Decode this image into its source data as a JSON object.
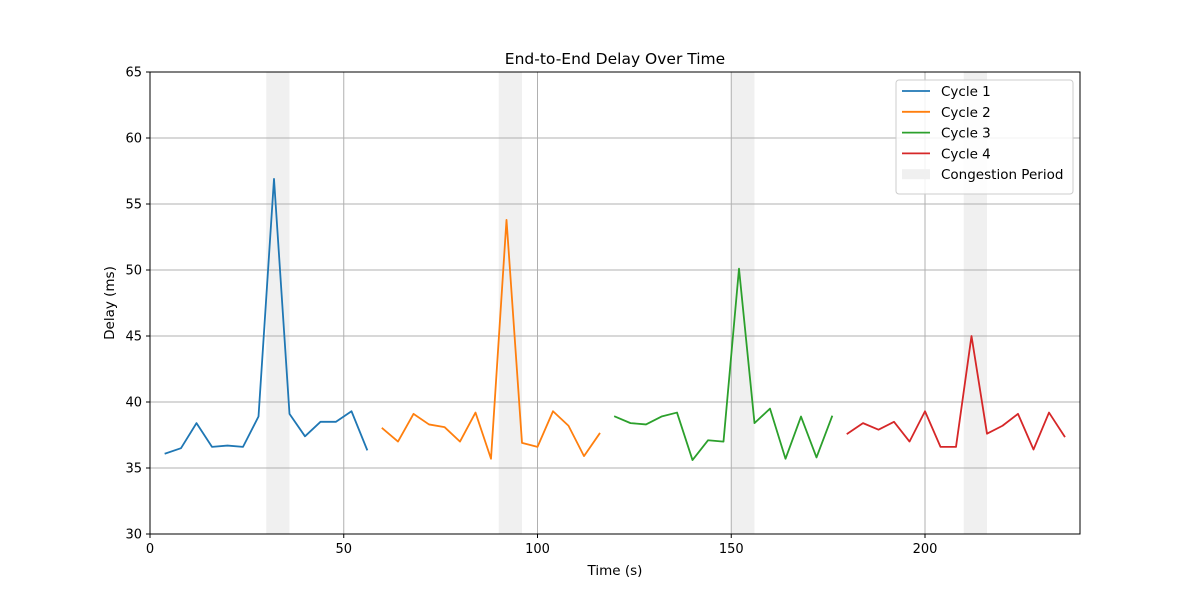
{
  "chart_data": {
    "type": "line",
    "title": "End-to-End Delay Over Time",
    "xlabel": "Time (s)",
    "ylabel": "Delay (ms)",
    "xlim": [
      0,
      240
    ],
    "ylim": [
      30,
      65
    ],
    "xticks": [
      0,
      50,
      100,
      150,
      200
    ],
    "yticks": [
      30,
      35,
      40,
      45,
      50,
      55,
      60,
      65
    ],
    "grid": true,
    "legend_position": "top-right",
    "series": [
      {
        "name": "Cycle 1",
        "color": "#1f77b4",
        "x": [
          4,
          8,
          12,
          16,
          20,
          24,
          28,
          32,
          36,
          40,
          44,
          48,
          52,
          56
        ],
        "y": [
          36.1,
          36.5,
          38.4,
          36.6,
          36.7,
          36.6,
          38.9,
          56.9,
          39.1,
          37.4,
          38.5,
          38.5,
          39.3,
          36.4
        ]
      },
      {
        "name": "Cycle 2",
        "color": "#ff7f0e",
        "x": [
          60,
          64,
          68,
          72,
          76,
          80,
          84,
          88,
          92,
          96,
          100,
          104,
          108,
          112,
          116
        ],
        "y": [
          38.0,
          37.0,
          39.1,
          38.3,
          38.1,
          37.0,
          39.2,
          35.7,
          53.8,
          36.9,
          36.6,
          39.3,
          38.2,
          35.9,
          37.6
        ]
      },
      {
        "name": "Cycle 3",
        "color": "#2ca02c",
        "x": [
          120,
          124,
          128,
          132,
          136,
          140,
          144,
          148,
          152,
          156,
          160,
          164,
          168,
          172,
          176
        ],
        "y": [
          38.9,
          38.4,
          38.3,
          38.9,
          39.2,
          35.6,
          37.1,
          37.0,
          50.1,
          38.4,
          39.5,
          35.7,
          38.9,
          35.8,
          38.9
        ]
      },
      {
        "name": "Cycle 4",
        "color": "#d62728",
        "x": [
          180,
          184,
          188,
          192,
          196,
          200,
          204,
          208,
          212,
          216,
          220,
          224,
          228,
          232,
          236
        ],
        "y": [
          37.6,
          38.4,
          37.9,
          38.5,
          37.0,
          39.3,
          36.6,
          36.6,
          45.0,
          37.6,
          38.2,
          39.1,
          36.4,
          39.2,
          37.4
        ]
      }
    ],
    "congestion_periods": {
      "name": "Congestion Period",
      "color": "#f0f0f0",
      "ranges": [
        [
          30,
          36
        ],
        [
          90,
          96
        ],
        [
          150,
          156
        ],
        [
          210,
          216
        ]
      ]
    }
  }
}
